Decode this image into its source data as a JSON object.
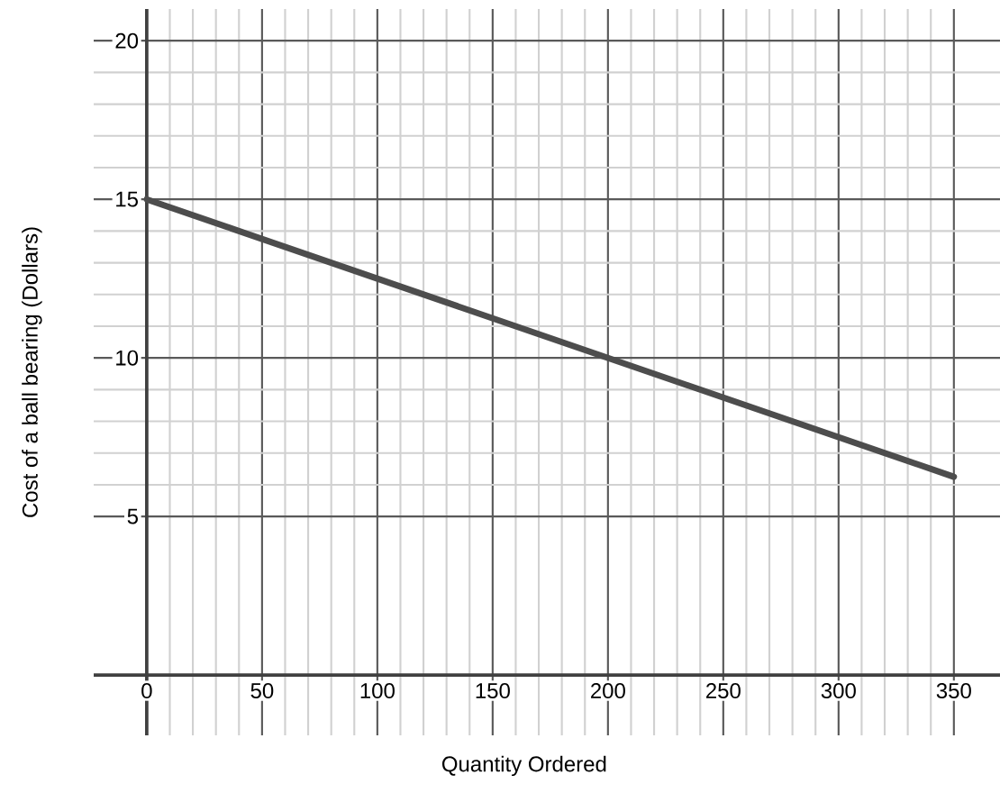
{
  "chart_data": {
    "type": "line",
    "xlabel": "Quantity Ordered",
    "ylabel": "Cost of a ball bearing (Dollars)",
    "x": [
      0,
      350
    ],
    "series": [
      {
        "color": "#4d4d4d",
        "values": [
          15,
          6.25
        ]
      }
    ],
    "xlim": [
      -23,
      370
    ],
    "ylim": [
      -1.9,
      21
    ],
    "xticks": [
      0,
      50,
      100,
      150,
      200,
      250,
      300,
      350
    ],
    "yticks": [
      5,
      10,
      15,
      20
    ],
    "grid": true,
    "marker": "none",
    "line_style": "solid"
  }
}
